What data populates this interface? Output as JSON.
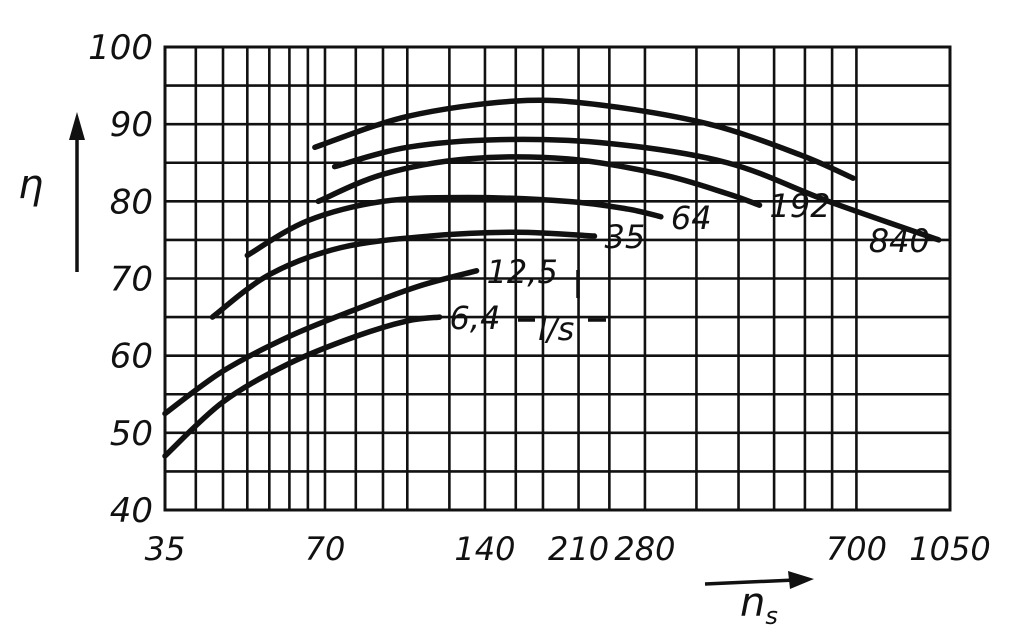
{
  "chart_data": {
    "type": "line",
    "xlabel": "n",
    "xlabel_sub": "s",
    "ylabel": "η",
    "x_scale": "log",
    "xlim": [
      35,
      1050
    ],
    "ylim": [
      40,
      100
    ],
    "y_ticks": [
      "40",
      "50",
      "60",
      "70",
      "80",
      "90",
      "100"
    ],
    "x_ticks": [
      {
        "value": 35,
        "label": "35"
      },
      {
        "value": 70,
        "label": "70"
      },
      {
        "value": 140,
        "label": "140"
      },
      {
        "value": 210,
        "label": "210"
      },
      {
        "value": 280,
        "label": "280"
      },
      {
        "value": 700,
        "label": "700"
      },
      {
        "value": 1050,
        "label": "1050"
      }
    ],
    "x_gridlines": [
      35,
      40,
      45,
      50,
      55,
      60,
      65,
      70,
      80,
      90,
      100,
      120,
      140,
      160,
      180,
      210,
      240,
      280,
      350,
      420,
      490,
      560,
      630,
      700,
      1050
    ],
    "y_gridlines": [
      40,
      45,
      50,
      55,
      60,
      65,
      70,
      75,
      80,
      85,
      90,
      95,
      100
    ],
    "grid": true,
    "unit_annotation": "l/s",
    "series": [
      {
        "name": "6,4",
        "points": [
          [
            35,
            47
          ],
          [
            45,
            54
          ],
          [
            60,
            59
          ],
          [
            80,
            62.5
          ],
          [
            100,
            64.5
          ],
          [
            115,
            65
          ]
        ]
      },
      {
        "name": "12,5",
        "points": [
          [
            35,
            52.5
          ],
          [
            45,
            58
          ],
          [
            60,
            62.5
          ],
          [
            80,
            66
          ],
          [
            105,
            69
          ],
          [
            135,
            71
          ]
        ]
      },
      {
        "name": "35",
        "points": [
          [
            43,
            65
          ],
          [
            55,
            70.5
          ],
          [
            75,
            74
          ],
          [
            110,
            75.5
          ],
          [
            160,
            76
          ],
          [
            225,
            75.5
          ]
        ]
      },
      {
        "name": "64",
        "points": [
          [
            50,
            73
          ],
          [
            65,
            77.5
          ],
          [
            90,
            80
          ],
          [
            130,
            80.5
          ],
          [
            200,
            80
          ],
          [
            260,
            79
          ],
          [
            300,
            78
          ]
        ]
      },
      {
        "name": "192",
        "points": [
          [
            68,
            80
          ],
          [
            90,
            83.5
          ],
          [
            130,
            85.5
          ],
          [
            200,
            85.5
          ],
          [
            300,
            83.5
          ],
          [
            400,
            81
          ],
          [
            460,
            79.5
          ]
        ]
      },
      {
        "name": "840",
        "points": [
          [
            73,
            84.5
          ],
          [
            100,
            87
          ],
          [
            150,
            88
          ],
          [
            240,
            87.5
          ],
          [
            400,
            85
          ],
          [
            620,
            80
          ],
          [
            1000,
            75
          ]
        ]
      },
      {
        "name": "",
        "points": [
          [
            67,
            87
          ],
          [
            100,
            91
          ],
          [
            160,
            93
          ],
          [
            230,
            92.5
          ],
          [
            370,
            90
          ],
          [
            550,
            86
          ],
          [
            690,
            83
          ]
        ]
      }
    ],
    "annotations": [
      "6,4",
      "12,5",
      "35",
      "64",
      "192",
      "840",
      "l/s"
    ]
  }
}
